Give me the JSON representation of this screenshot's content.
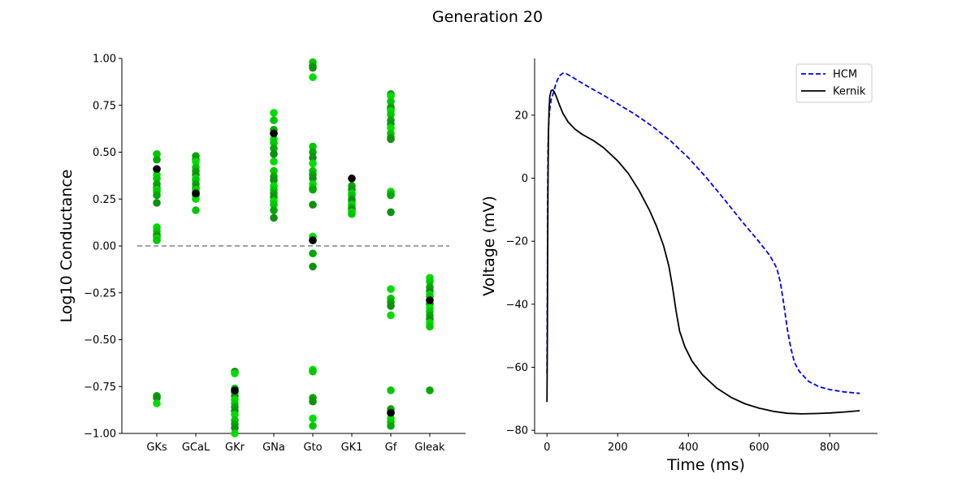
{
  "figure": {
    "title": "Generation 20"
  },
  "chart_data": [
    {
      "type": "scatter",
      "ylabel": "Log10 Conductance",
      "xlabel": "",
      "ylim": [
        -1.0,
        1.0
      ],
      "yticks": [
        "−1.00",
        "−0.75",
        "−0.50",
        "−0.25",
        "0.00",
        "0.25",
        "0.50",
        "0.75",
        "1.00"
      ],
      "categories": [
        "GKs",
        "GCaL",
        "GKr",
        "GNa",
        "Gto",
        "GK1",
        "Gf",
        "Gleak"
      ],
      "reference_line": {
        "y": 0.0,
        "style": "dashed",
        "color": "#808080"
      },
      "population_colors": [
        "#00c800",
        "#00a800",
        "#109010",
        "#00dc00"
      ],
      "best_color": "#000000",
      "population": [
        [
          0.49,
          0.46,
          0.41,
          0.38,
          0.36,
          0.33,
          0.31,
          0.3,
          0.29,
          0.27,
          0.23,
          0.1,
          0.08,
          0.06,
          0.05,
          0.04,
          0.03,
          -0.8,
          -0.81,
          -0.84
        ],
        [
          0.48,
          0.46,
          0.45,
          0.42,
          0.4,
          0.38,
          0.36,
          0.35,
          0.33,
          0.31,
          0.3,
          0.29,
          0.28,
          0.27,
          0.25,
          0.19
        ],
        [
          -0.67,
          -0.68,
          -0.76,
          -0.78,
          -0.8,
          -0.82,
          -0.84,
          -0.86,
          -0.88,
          -0.9,
          -0.93,
          -0.95,
          -0.97,
          -1.0
        ],
        [
          0.71,
          0.67,
          0.62,
          0.6,
          0.57,
          0.55,
          0.52,
          0.49,
          0.45,
          0.4,
          0.37,
          0.35,
          0.32,
          0.3,
          0.28,
          0.26,
          0.24,
          0.22,
          0.19,
          0.15
        ],
        [
          0.98,
          0.96,
          0.95,
          0.9,
          0.53,
          0.5,
          0.47,
          0.44,
          0.4,
          0.38,
          0.36,
          0.33,
          0.31,
          0.3,
          0.22,
          0.05,
          0.03,
          -0.04,
          -0.11,
          -0.66,
          -0.67,
          -0.81,
          -0.83,
          -0.92,
          -0.96
        ],
        [
          0.32,
          0.3,
          0.28,
          0.27,
          0.25,
          0.24,
          0.22,
          0.21,
          0.2,
          0.19,
          0.18,
          0.17
        ],
        [
          0.81,
          0.8,
          0.77,
          0.74,
          0.73,
          0.72,
          0.7,
          0.67,
          0.65,
          0.63,
          0.6,
          0.58,
          0.57,
          0.29,
          0.28,
          0.27,
          0.18,
          -0.23,
          -0.28,
          -0.3,
          -0.32,
          -0.37,
          -0.77,
          -0.87,
          -0.89,
          -0.92,
          -0.94,
          -0.96
        ],
        [
          -0.17,
          -0.19,
          -0.22,
          -0.24,
          -0.26,
          -0.27,
          -0.29,
          -0.31,
          -0.33,
          -0.35,
          -0.37,
          -0.39,
          -0.41,
          -0.43,
          -0.77
        ]
      ],
      "best": [
        0.41,
        0.28,
        -0.77,
        0.6,
        0.03,
        0.36,
        -0.89,
        -0.29
      ]
    },
    {
      "type": "line",
      "xlabel": "Time (ms)",
      "ylabel": "Voltage (mV)",
      "xlim": [
        -35,
        935
      ],
      "ylim": [
        -81,
        38
      ],
      "xticks": [
        0,
        200,
        400,
        600,
        800
      ],
      "yticks": [
        20,
        0,
        -20,
        -40,
        -60,
        -80
      ],
      "yticks_labels": [
        "20",
        "0",
        "−20",
        "−40",
        "−60",
        "−80"
      ],
      "legend_position": "top-right",
      "series": [
        {
          "name": "HCM",
          "color": "#0000ee",
          "style": "dashed",
          "points": [
            [
              0,
              -62
            ],
            [
              1,
              -35
            ],
            [
              2,
              -5
            ],
            [
              3,
              10
            ],
            [
              5,
              18
            ],
            [
              8,
              22
            ],
            [
              12,
              25
            ],
            [
              18,
              27
            ],
            [
              25,
              30
            ],
            [
              35,
              32.5
            ],
            [
              45,
              33.3
            ],
            [
              55,
              33.1
            ],
            [
              70,
              32.2
            ],
            [
              90,
              30.8
            ],
            [
              120,
              28.8
            ],
            [
              160,
              26.3
            ],
            [
              200,
              23.6
            ],
            [
              250,
              20.2
            ],
            [
              300,
              16.3
            ],
            [
              350,
              11.8
            ],
            [
              400,
              6.5
            ],
            [
              450,
              0.3
            ],
            [
              500,
              -6.5
            ],
            [
              550,
              -13.5
            ],
            [
              600,
              -20.2
            ],
            [
              630,
              -24.5
            ],
            [
              650,
              -28.5
            ],
            [
              660,
              -33
            ],
            [
              670,
              -40
            ],
            [
              680,
              -48
            ],
            [
              690,
              -54
            ],
            [
              700,
              -58.5
            ],
            [
              715,
              -61.5
            ],
            [
              740,
              -64.5
            ],
            [
              770,
              -66.2
            ],
            [
              800,
              -67.1
            ],
            [
              840,
              -67.8
            ],
            [
              885,
              -68.3
            ]
          ]
        },
        {
          "name": "Kernik",
          "color": "#000000",
          "style": "solid",
          "points": [
            [
              0,
              -71
            ],
            [
              1,
              -50
            ],
            [
              2,
              -20
            ],
            [
              3,
              0
            ],
            [
              4,
              14
            ],
            [
              6,
              22
            ],
            [
              8,
              26
            ],
            [
              12,
              27.8
            ],
            [
              16,
              28
            ],
            [
              20,
              27.5
            ],
            [
              25,
              26.3
            ],
            [
              35,
              23.3
            ],
            [
              45,
              20.6
            ],
            [
              60,
              17.8
            ],
            [
              80,
              15.5
            ],
            [
              100,
              13.9
            ],
            [
              130,
              12
            ],
            [
              160,
              9.7
            ],
            [
              200,
              5.5
            ],
            [
              230,
              1.5
            ],
            [
              260,
              -3.8
            ],
            [
              290,
              -10.2
            ],
            [
              310,
              -15.3
            ],
            [
              330,
              -21.5
            ],
            [
              345,
              -28
            ],
            [
              355,
              -34.5
            ],
            [
              365,
              -42
            ],
            [
              375,
              -48.5
            ],
            [
              390,
              -53.5
            ],
            [
              410,
              -58
            ],
            [
              440,
              -62.4
            ],
            [
              480,
              -66.6
            ],
            [
              520,
              -69.5
            ],
            [
              560,
              -71.6
            ],
            [
              600,
              -73
            ],
            [
              640,
              -74
            ],
            [
              680,
              -74.6
            ],
            [
              720,
              -74.8
            ],
            [
              760,
              -74.7
            ],
            [
              800,
              -74.5
            ],
            [
              840,
              -74.2
            ],
            [
              885,
              -73.8
            ]
          ]
        }
      ]
    }
  ]
}
